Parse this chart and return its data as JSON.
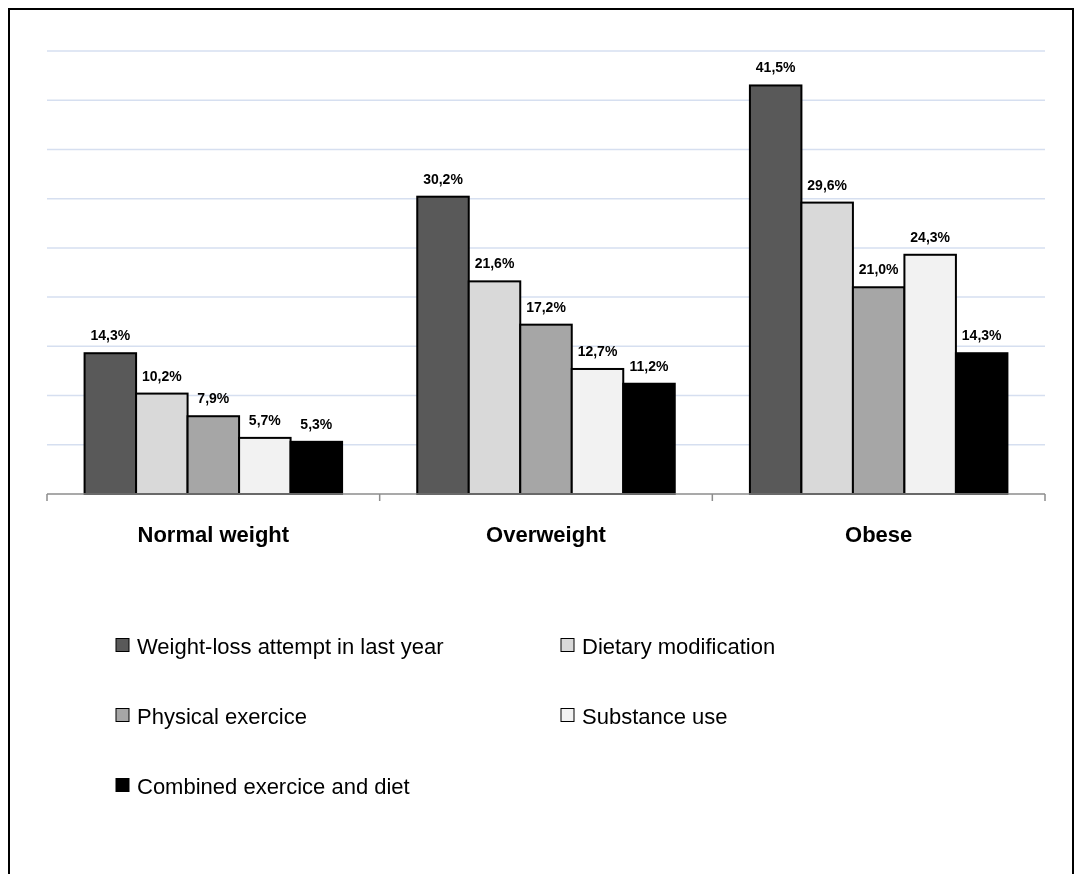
{
  "chart_data": {
    "type": "bar",
    "categories": [
      "Normal weight",
      "Overweight",
      "Obese"
    ],
    "series": [
      {
        "name": "Weight-loss attempt in last year",
        "color": "#595959",
        "values": [
          14.3,
          30.2,
          41.5
        ],
        "value_labels": [
          "14,3%",
          "30,2%",
          "41,5%"
        ]
      },
      {
        "name": "Dietary modification",
        "color": "#d9d9d9",
        "values": [
          10.2,
          21.6,
          29.6
        ],
        "value_labels": [
          "10,2%",
          "21,6%",
          "29,6%"
        ]
      },
      {
        "name": "Physical exercice",
        "color": "#a6a6a6",
        "values": [
          7.9,
          17.2,
          21.0
        ],
        "value_labels": [
          "7,9%",
          "17,2%",
          "21,0%"
        ]
      },
      {
        "name": "Substance use",
        "color": "#f2f2f2",
        "values": [
          5.7,
          12.7,
          24.3
        ],
        "value_labels": [
          "5,7%",
          "12,7%",
          "24,3%"
        ]
      },
      {
        "name": "Combined exercice and diet",
        "color": "#000000",
        "values": [
          5.3,
          11.2,
          14.3
        ],
        "value_labels": [
          "5,3%",
          "11,2%",
          "14,3%"
        ]
      }
    ],
    "ylim": [
      0,
      45
    ],
    "yticks": [
      {
        "value": 0,
        "label": null
      },
      {
        "value": 5,
        "label": null
      },
      {
        "value": 10,
        "label": null
      },
      {
        "value": 15,
        "label": null
      },
      {
        "value": 20,
        "label": null
      },
      {
        "value": 25,
        "label": null
      },
      {
        "value": 30,
        "label": null
      },
      {
        "value": 35,
        "label": null
      },
      {
        "value": 40,
        "label": null
      },
      {
        "value": 45,
        "label": null
      }
    ],
    "grid": "y",
    "tick_labels": "x",
    "legend": "bottom"
  }
}
